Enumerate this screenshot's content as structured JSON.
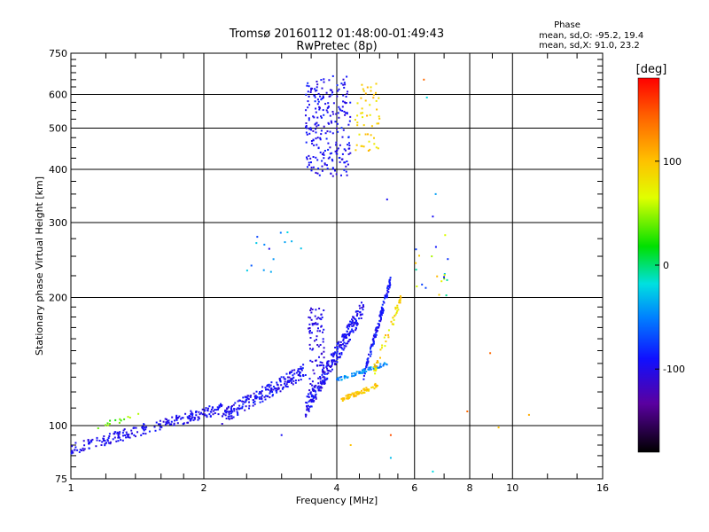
{
  "chart_data": {
    "type": "scatter",
    "title": "Tromsø 20160112 01:48:00-01:49:43",
    "subtitle": "RwPretec (8p)",
    "xlabel": "Frequency [MHz]",
    "ylabel": "Stationary phase Virtual Height [km]",
    "x_scale": "log2",
    "y_scale": "log",
    "xlim": [
      1,
      16
    ],
    "ylim": [
      75,
      750
    ],
    "x_ticks": [
      "1",
      "2",
      "4",
      "6",
      "8",
      "10",
      "16"
    ],
    "x_tick_values": [
      1,
      2,
      4,
      6,
      8,
      10,
      16
    ],
    "y_ticks": [
      "75",
      "100",
      "200",
      "300",
      "400",
      "500",
      "600",
      "750"
    ],
    "y_tick_values": [
      75,
      100,
      200,
      300,
      400,
      500,
      600,
      750
    ],
    "grid": true,
    "annotation": {
      "heading": "Phase",
      "line1": "mean, sd,O: -95.2, 19.4",
      "line2": "mean, sd,X:  91.0, 23.2"
    },
    "colorbar": {
      "label": "[deg]",
      "ticks": [
        "100",
        "0",
        "-100"
      ],
      "tick_values": [
        100,
        0,
        -100
      ],
      "range": [
        -180,
        180
      ]
    },
    "clusters": [
      {
        "name": "low-trace",
        "f": [
          1.0,
          2.2
        ],
        "h": [
          88,
          110
        ],
        "phase": [
          -110,
          -85
        ],
        "n": 230,
        "spread": 0.06
      },
      {
        "name": "low-trace-green",
        "f": [
          1.15,
          1.45
        ],
        "h": [
          100,
          106
        ],
        "phase": [
          20,
          60
        ],
        "n": 14,
        "spread": 0.03
      },
      {
        "name": "mid-trace",
        "f": [
          2.2,
          3.4
        ],
        "h": [
          105,
          135
        ],
        "phase": [
          -110,
          -80
        ],
        "n": 220,
        "spread": 0.08
      },
      {
        "name": "rise-O",
        "f": [
          3.4,
          4.6
        ],
        "h": [
          110,
          190
        ],
        "phase": [
          -110,
          -80
        ],
        "n": 260,
        "spread": 0.1
      },
      {
        "name": "column-3.6",
        "f": [
          3.45,
          3.75
        ],
        "h": [
          120,
          190
        ],
        "phase": [
          -115,
          -90
        ],
        "n": 90,
        "spread": 0.02
      },
      {
        "name": "O-cusp",
        "f": [
          4.6,
          5.3
        ],
        "h": [
          130,
          220
        ],
        "phase": [
          -105,
          -75
        ],
        "n": 120,
        "spread": 0.05
      },
      {
        "name": "O-blue-line",
        "f": [
          4.0,
          5.2
        ],
        "h": [
          128,
          140
        ],
        "phase": [
          -60,
          -30
        ],
        "n": 70,
        "spread": 0.02
      },
      {
        "name": "X-yellow",
        "f": [
          4.1,
          5.0
        ],
        "h": [
          115,
          125
        ],
        "phase": [
          80,
          110
        ],
        "n": 70,
        "spread": 0.025
      },
      {
        "name": "X-mix",
        "f": [
          4.8,
          5.6
        ],
        "h": [
          130,
          200
        ],
        "phase": [
          60,
          110
        ],
        "n": 50,
        "spread": 0.06
      },
      {
        "name": "F-blue",
        "f": [
          3.4,
          4.3
        ],
        "h": [
          390,
          650
        ],
        "phase": [
          -110,
          -80
        ],
        "n": 240,
        "spread": 0.06
      },
      {
        "name": "F-yellow",
        "f": [
          4.4,
          5.0
        ],
        "h": [
          440,
          640
        ],
        "phase": [
          70,
          110
        ],
        "n": 50,
        "spread": 0.05
      },
      {
        "name": "spread-6",
        "f": [
          6.0,
          7.2
        ],
        "h": [
          200,
          280
        ],
        "phase": [
          -90,
          120
        ],
        "n": 20,
        "spread": 0.1
      },
      {
        "name": "sparse-mid",
        "f": [
          2.5,
          3.7
        ],
        "h": [
          220,
          290
        ],
        "phase": [
          -100,
          -20
        ],
        "n": 14,
        "spread": 0.05
      }
    ],
    "isolated_points": [
      {
        "f": 6.3,
        "h": 650,
        "phase": 140
      },
      {
        "f": 6.4,
        "h": 590,
        "phase": -20
      },
      {
        "f": 6.7,
        "h": 350,
        "phase": -40
      },
      {
        "f": 5.2,
        "h": 340,
        "phase": -95
      },
      {
        "f": 6.6,
        "h": 310,
        "phase": -95
      },
      {
        "f": 7.9,
        "h": 108,
        "phase": 140
      },
      {
        "f": 8.9,
        "h": 148,
        "phase": 140
      },
      {
        "f": 9.3,
        "h": 99,
        "phase": 100
      },
      {
        "f": 10.9,
        "h": 106,
        "phase": 110
      },
      {
        "f": 5.3,
        "h": 95,
        "phase": 150
      },
      {
        "f": 5.3,
        "h": 84,
        "phase": -30
      },
      {
        "f": 6.6,
        "h": 78,
        "phase": -20
      },
      {
        "f": 4.3,
        "h": 90,
        "phase": 100
      },
      {
        "f": 3.0,
        "h": 95,
        "phase": -95
      }
    ]
  }
}
